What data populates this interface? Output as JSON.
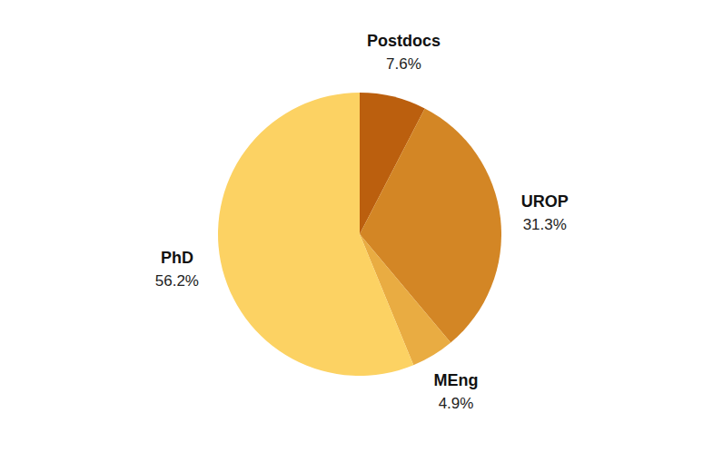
{
  "chart_data": {
    "type": "pie",
    "categories": [
      "Postdocs",
      "UROP",
      "MEng",
      "PhD"
    ],
    "values": [
      7.6,
      31.3,
      4.9,
      56.2
    ],
    "value_labels": [
      "7.6%",
      "31.3%",
      "4.9%",
      "56.2%"
    ],
    "colors": [
      "#bb5f0e",
      "#d38625",
      "#e9ac42",
      "#fcd263"
    ],
    "data_labels": true
  }
}
